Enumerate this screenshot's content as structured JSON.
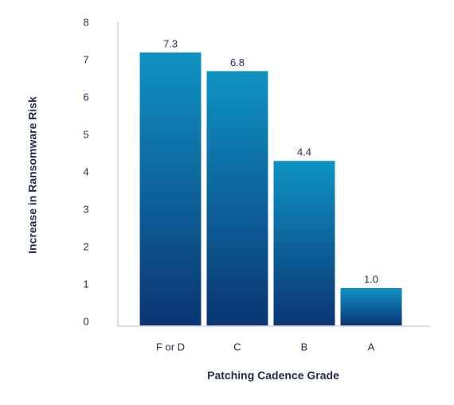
{
  "chart_data": {
    "type": "bar",
    "x_label": "Patching Cadence Grade",
    "y_label": "Increase in Ransomware Risk",
    "categories": [
      "F or D",
      "C",
      "B",
      "A"
    ],
    "values": [
      7.3,
      6.8,
      4.4,
      1
    ],
    "value_labels": [
      "7.3",
      "6.8",
      "4.4",
      "1.0"
    ],
    "ylim": [
      0,
      8
    ],
    "yticks": [
      0,
      1,
      2,
      3,
      4,
      5,
      6,
      7,
      8
    ],
    "grid": false
  }
}
